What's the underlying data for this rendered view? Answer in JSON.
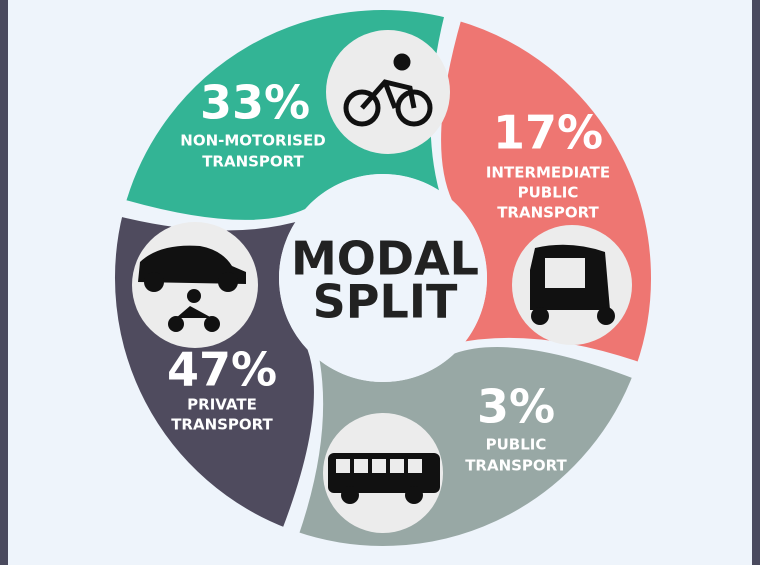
{
  "title": [
    "MODAL",
    "SPLIT"
  ],
  "segments": [
    {
      "percent": "33%",
      "label": [
        "NON-MOTORISED",
        "TRANSPORT"
      ]
    },
    {
      "percent": "17%",
      "label": [
        "INTERMEDIATE",
        "PUBLIC",
        "TRANSPORT"
      ]
    },
    {
      "percent": "3%",
      "label": [
        "PUBLIC",
        "TRANSPORT"
      ]
    },
    {
      "percent": "47%",
      "label": [
        "PRIVATE",
        "TRANSPORT"
      ]
    }
  ]
}
